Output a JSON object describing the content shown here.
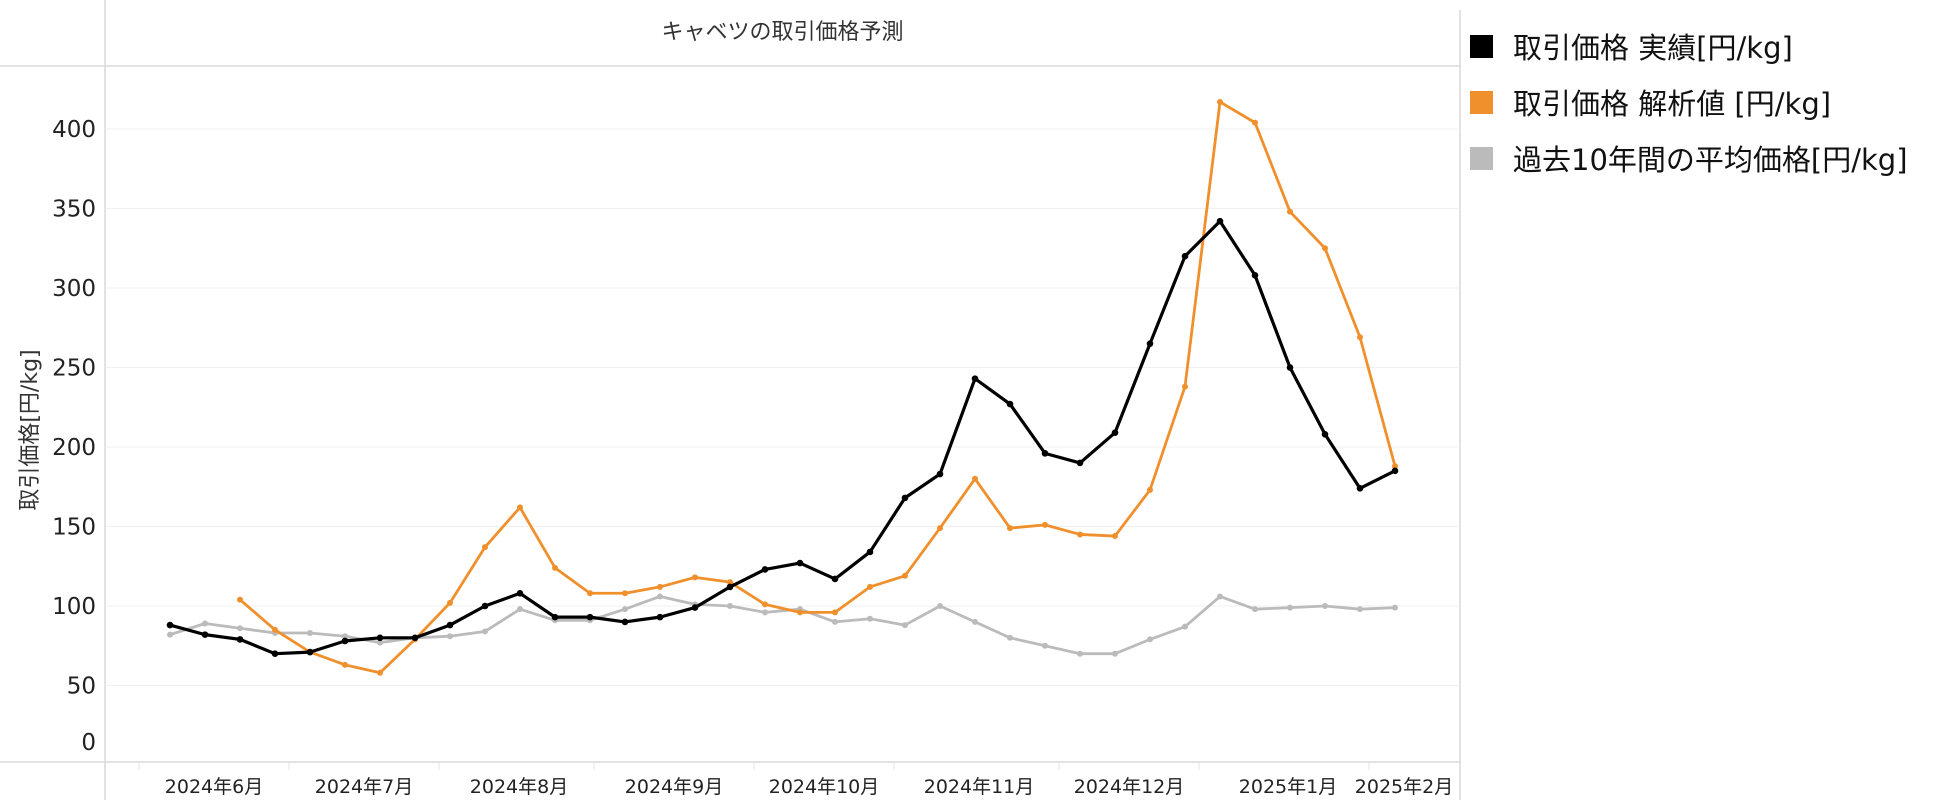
{
  "chart_data": {
    "type": "line",
    "title": "キャベツの取引価格予測",
    "xlabel": "",
    "ylabel": "取引価格[円/kg]",
    "ylim": [
      0,
      420
    ],
    "yticks": [
      0,
      50,
      100,
      150,
      200,
      250,
      300,
      350,
      400
    ],
    "grid": true,
    "legend_position": "right",
    "month_labels": [
      "2024年6月",
      "2024年7月",
      "2024年8月",
      "2024年9月",
      "2024年10月",
      "2024年11月",
      "2024年12月",
      "2025年1月",
      "2025年2月"
    ],
    "x_count": 36,
    "series": [
      {
        "name": "取引価格 実績[円/kg]",
        "color": "#000000",
        "values": [
          88,
          82,
          79,
          70,
          71,
          78,
          80,
          80,
          88,
          100,
          108,
          93,
          93,
          90,
          93,
          99,
          112,
          123,
          127,
          117,
          134,
          168,
          183,
          243,
          227,
          196,
          190,
          209,
          265,
          320,
          342,
          308,
          250,
          208,
          174,
          185
        ]
      },
      {
        "name": "取引価格 解析値 [円/kg]",
        "color": "#F0902C",
        "values": [
          null,
          null,
          104,
          85,
          71,
          63,
          58,
          79,
          102,
          137,
          162,
          124,
          108,
          108,
          112,
          118,
          115,
          101,
          96,
          96,
          112,
          119,
          149,
          180,
          149,
          151,
          145,
          144,
          173,
          238,
          417,
          404,
          348,
          325,
          269,
          188
        ]
      },
      {
        "name": "過去10年間の平均価格[円/kg]",
        "color": "#BBBBBB",
        "values": [
          82,
          89,
          86,
          83,
          83,
          81,
          77,
          80,
          81,
          84,
          98,
          91,
          91,
          98,
          106,
          101,
          100,
          96,
          98,
          90,
          92,
          88,
          100,
          90,
          80,
          75,
          70,
          70,
          79,
          87,
          106,
          98,
          99,
          100,
          98,
          99
        ]
      }
    ]
  },
  "legend": {
    "items": [
      {
        "label": "取引価格 実績[円/kg]",
        "color": "#000000"
      },
      {
        "label": "取引価格 解析値 [円/kg]",
        "color": "#F0902C"
      },
      {
        "label": "過去10年間の平均価格[円/kg]",
        "color": "#BBBBBB"
      }
    ]
  }
}
